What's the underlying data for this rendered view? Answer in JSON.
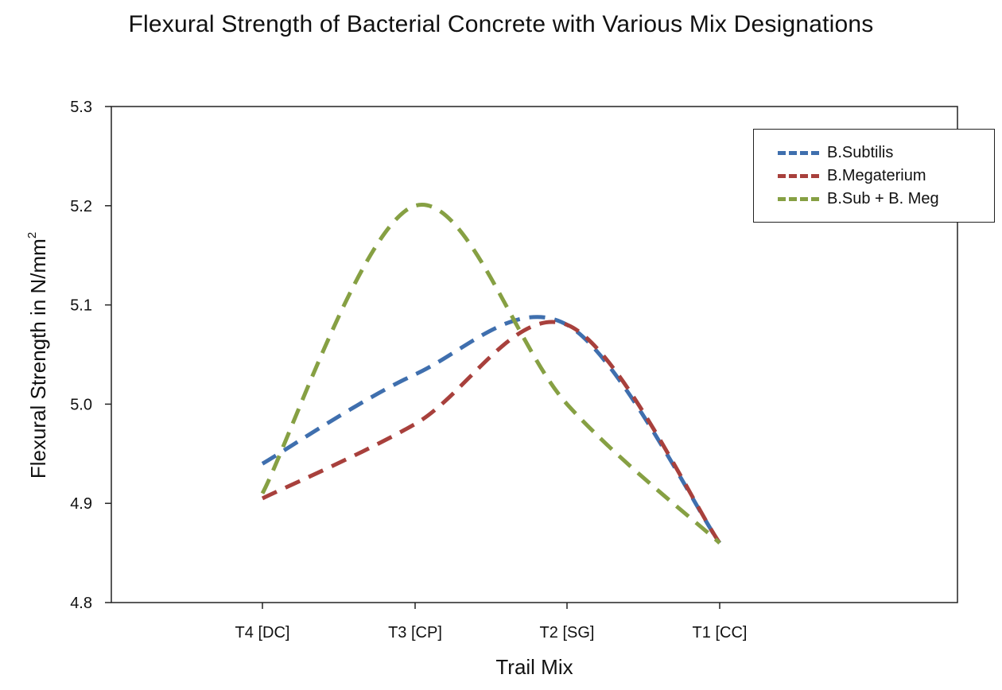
{
  "chart_data": {
    "type": "line",
    "title": "Flexural Strength of Bacterial Concrete with Various Mix Designations",
    "xlabel": "Trail Mix",
    "ylabel": "Flexural Strength in N/mm",
    "ylabel_superscript": "2",
    "categories": [
      "T4 [DC]",
      "T3 [CP]",
      "T2 [SG]",
      "T1 [CC]"
    ],
    "ylim": [
      4.8,
      5.3
    ],
    "yticks": [
      "4.8",
      "4.9",
      "5.0",
      "5.1",
      "5.2",
      "5.3"
    ],
    "grid": false,
    "legend_position": "top-right",
    "series": [
      {
        "name": "B.Subtilis",
        "color": "#3f6fae",
        "values": [
          4.94,
          5.03,
          5.08,
          4.86
        ]
      },
      {
        "name": "B.Megaterium",
        "color": "#a8403c",
        "values": [
          4.905,
          4.98,
          5.08,
          4.86
        ]
      },
      {
        "name": "B.Sub + B. Meg",
        "color": "#86a043",
        "values": [
          4.91,
          5.2,
          5.0,
          4.86
        ]
      }
    ]
  }
}
